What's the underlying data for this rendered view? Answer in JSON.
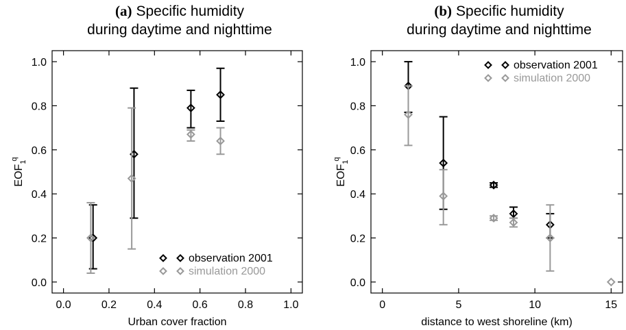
{
  "chart_data": [
    {
      "type": "scatter",
      "panel_letter": "(a)",
      "title_line1": "Specific humidity",
      "title_line2": "during daytime and nighttime",
      "xlabel": "Urban cover fraction",
      "ylabel_base": "EOF",
      "ylabel_sub": "1",
      "ylabel_sup": "q",
      "xlim": [
        -0.05,
        1.05
      ],
      "ylim": [
        -0.05,
        1.05
      ],
      "xticks": [
        "0.0",
        "0.2",
        "0.4",
        "0.6",
        "0.8",
        "1.0"
      ],
      "yticks": [
        "0.0",
        "0.2",
        "0.4",
        "0.6",
        "0.8",
        "1.0"
      ],
      "legend_position": "bottom-right",
      "series": [
        {
          "name": "observation 2001",
          "color": "#000000",
          "points": [
            {
              "x": 0.13,
              "y": 0.2,
              "low": 0.06,
              "high": 0.35
            },
            {
              "x": 0.31,
              "y": 0.58,
              "low": 0.29,
              "high": 0.88
            },
            {
              "x": 0.56,
              "y": 0.79,
              "low": 0.7,
              "high": 0.87
            },
            {
              "x": 0.69,
              "y": 0.85,
              "low": 0.73,
              "high": 0.97
            }
          ]
        },
        {
          "name": "simulation 2000",
          "color": "#999999",
          "points": [
            {
              "x": 0.12,
              "y": 0.2,
              "low": 0.04,
              "high": 0.36
            },
            {
              "x": 0.3,
              "y": 0.47,
              "low": 0.15,
              "high": 0.79
            },
            {
              "x": 0.56,
              "y": 0.67,
              "low": 0.64,
              "high": 0.69
            },
            {
              "x": 0.69,
              "y": 0.64,
              "low": 0.58,
              "high": 0.7
            }
          ]
        }
      ]
    },
    {
      "type": "scatter",
      "panel_letter": "(b)",
      "title_line1": "Specific humidity",
      "title_line2": "during daytime and nighttime",
      "xlabel": "distance to west shoreline (km)",
      "ylabel_base": "EOF",
      "ylabel_sub": "1",
      "ylabel_sup": "q",
      "xlim": [
        -0.75,
        15.75
      ],
      "ylim": [
        -0.05,
        1.05
      ],
      "xticks": [
        "0",
        "5",
        "10",
        "15"
      ],
      "yticks": [
        "0.0",
        "0.2",
        "0.4",
        "0.6",
        "0.8",
        "1.0"
      ],
      "legend_position": "top-right",
      "series": [
        {
          "name": "observation 2001",
          "color": "#000000",
          "points": [
            {
              "x": 1.7,
              "y": 0.89,
              "low": 0.77,
              "high": 1.0
            },
            {
              "x": 4.0,
              "y": 0.54,
              "low": 0.33,
              "high": 0.75
            },
            {
              "x": 7.3,
              "y": 0.44,
              "low": 0.43,
              "high": 0.45
            },
            {
              "x": 8.6,
              "y": 0.31,
              "low": 0.29,
              "high": 0.34
            },
            {
              "x": 11.0,
              "y": 0.26,
              "low": 0.2,
              "high": 0.31
            }
          ]
        },
        {
          "name": "simulation 2000",
          "color": "#999999",
          "points": [
            {
              "x": 1.7,
              "y": 0.76,
              "low": 0.62,
              "high": 0.89
            },
            {
              "x": 4.0,
              "y": 0.39,
              "low": 0.26,
              "high": 0.51
            },
            {
              "x": 7.3,
              "y": 0.29,
              "low": 0.28,
              "high": 0.3
            },
            {
              "x": 8.6,
              "y": 0.27,
              "low": 0.25,
              "high": 0.29
            },
            {
              "x": 11.0,
              "y": 0.2,
              "low": 0.05,
              "high": 0.35
            },
            {
              "x": 15.0,
              "y": 0.0,
              "low": 0.0,
              "high": 0.0
            }
          ]
        }
      ]
    }
  ]
}
